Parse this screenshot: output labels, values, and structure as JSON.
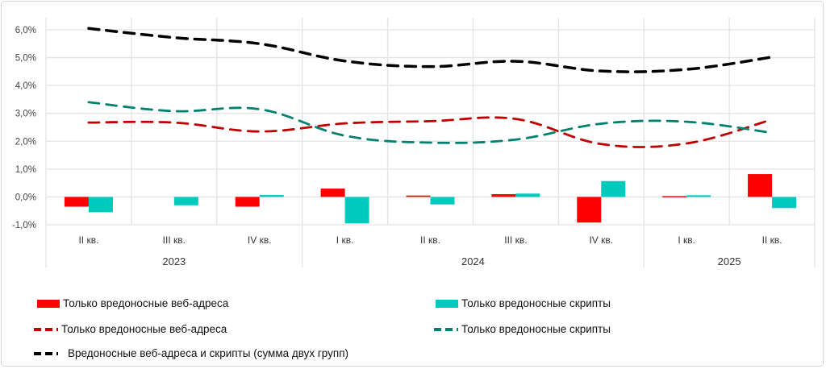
{
  "chart_data": {
    "type": "bar+line",
    "title": "",
    "xlabel": "",
    "ylabel": "",
    "ylim": [
      -1,
      6
    ],
    "yticks": [
      "-1,0%",
      "0,0%",
      "1,0%",
      "2,0%",
      "3,0%",
      "4,0%",
      "5,0%",
      "6,0%"
    ],
    "ytick_values": [
      -1,
      0,
      1,
      2,
      3,
      4,
      5,
      6
    ],
    "grid": true,
    "categories": [
      "II кв.",
      "III кв.",
      "IV кв.",
      "I кв.",
      "II кв.",
      "III кв.",
      "IV кв.",
      "I кв.",
      "II кв."
    ],
    "groups": [
      {
        "label": "2023",
        "count": 3
      },
      {
        "label": "2024",
        "count": 4
      },
      {
        "label": "2025",
        "count": 2
      }
    ],
    "bar_series": [
      {
        "name": "Только вредоносные веб-адреса",
        "color": "#ff0000",
        "values": [
          -0.35,
          0.0,
          -0.35,
          0.3,
          0.05,
          0.1,
          -0.92,
          0.03,
          0.82
        ]
      },
      {
        "name": "Только вредоносные скрипты",
        "color": "#00c9bd",
        "values": [
          -0.55,
          -0.3,
          0.07,
          -0.95,
          -0.27,
          0.12,
          0.57,
          0.06,
          -0.4
        ]
      }
    ],
    "line_series": [
      {
        "name": "Только вредоносные веб-адреса",
        "color": "#c00000",
        "values": [
          2.67,
          2.67,
          2.35,
          2.64,
          2.72,
          2.8,
          1.9,
          1.92,
          2.78
        ]
      },
      {
        "name": "Только вредоносные скрипты",
        "color": "#00806e",
        "values": [
          3.4,
          3.08,
          3.15,
          2.2,
          1.95,
          2.06,
          2.63,
          2.7,
          2.3
        ]
      },
      {
        "name": "Вредоносные веб-адреса и скрипты (сумма двух групп)",
        "color": "#000000",
        "values": [
          6.05,
          5.72,
          5.5,
          4.88,
          4.68,
          4.87,
          4.52,
          4.58,
          5.02
        ]
      }
    ],
    "legend_placement": "bottom"
  }
}
